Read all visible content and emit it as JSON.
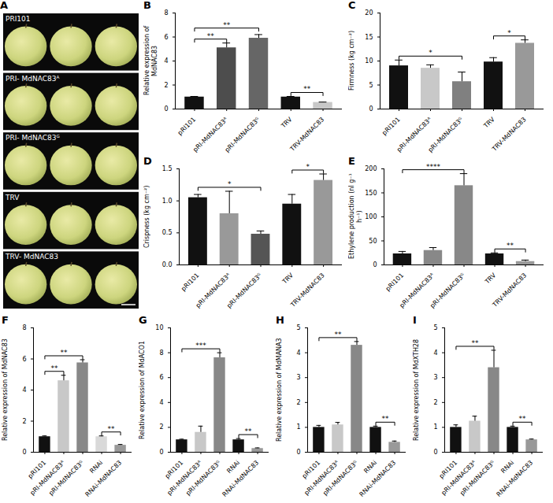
{
  "panel_a": {
    "letter": "A",
    "rows": [
      "PRI101",
      "PRI- MdNAC83ᴬ",
      "PRI- MdNAC83ᴳ",
      "TRV",
      "TRV- MdNAC83"
    ]
  },
  "chart_data": [
    {
      "letter": "B",
      "type": "bar",
      "y_label": "Relative expression of MdNAC83",
      "categories": [
        "pRI101",
        "pRI-MdNAC83ᴬ",
        "pRI-MdNAC83ᴳ",
        "TRV",
        "TRV-MdNAC83"
      ],
      "values": [
        1.0,
        5.1,
        5.9,
        1.0,
        0.55
      ],
      "errors": [
        0.05,
        0.4,
        0.3,
        0.05,
        0.03
      ],
      "colors": [
        "#111111",
        "#4d4d4d",
        "#666666",
        "#111111",
        "#c8c8c8"
      ],
      "ylim": [
        0,
        8
      ],
      "yticks": [
        0,
        2,
        4,
        6,
        8
      ],
      "annotations": [
        {
          "from": "pRI101",
          "to": "pRI-MdNAC83ᴬ",
          "label": "**"
        },
        {
          "from": "pRI101",
          "to": "pRI-MdNAC83ᴳ",
          "label": "**"
        },
        {
          "from": "TRV",
          "to": "TRV-MdNAC83",
          "label": "**"
        }
      ]
    },
    {
      "letter": "C",
      "type": "bar",
      "y_label": "Firmness (kg cm⁻²)",
      "categories": [
        "pRI101",
        "pRI-MdNAC83ᴬ",
        "pRI-MdNAC83ᴳ",
        "TRV",
        "TRV-MdNAC83"
      ],
      "values": [
        9.0,
        8.5,
        5.7,
        9.8,
        13.7
      ],
      "errors": [
        1.2,
        0.7,
        2.0,
        0.9,
        0.7
      ],
      "colors": [
        "#111111",
        "#c8c8c8",
        "#808080",
        "#111111",
        "#999999"
      ],
      "ylim": [
        0,
        20
      ],
      "yticks": [
        0,
        5,
        10,
        15,
        20
      ],
      "annotations": [
        {
          "from": "pRI101",
          "to": "pRI-MdNAC83ᴳ",
          "label": "*"
        },
        {
          "from": "TRV",
          "to": "TRV-MdNAC83",
          "label": "*"
        }
      ]
    },
    {
      "letter": "D",
      "type": "bar",
      "y_label": "Crispness (kg cm⁻²)",
      "categories": [
        "pRI101",
        "pRI-MdNAC83ᴬ",
        "pRI-MdNAC83ᴳ",
        "TRV",
        "TRV-MdNAC83"
      ],
      "values": [
        1.05,
        0.8,
        0.48,
        0.95,
        1.32
      ],
      "errors": [
        0.05,
        0.35,
        0.05,
        0.15,
        0.1
      ],
      "colors": [
        "#111111",
        "#999999",
        "#555555",
        "#111111",
        "#999999"
      ],
      "ylim": [
        0,
        1.5
      ],
      "yticks": [
        {
          "value": 0,
          "label": "0.0"
        },
        {
          "value": 0.5,
          "label": "0.5"
        },
        {
          "value": 1,
          "label": "1.0"
        },
        {
          "value": 1.5,
          "label": "1.5"
        }
      ],
      "annotations": [
        {
          "from": "pRI101",
          "to": "pRI-MdNAC83ᴳ",
          "label": "*"
        },
        {
          "from": "TRV",
          "to": "TRV-MdNAC83",
          "label": "*"
        }
      ]
    },
    {
      "letter": "E",
      "type": "bar",
      "y_label": "Ethylene production (nl g⁻¹ h⁻¹)",
      "categories": [
        "pRI101",
        "pRI-MdNAC83ᴬ",
        "pRI-MdNAC83ᴳ",
        "TRV",
        "TRV-MdNAC83"
      ],
      "values": [
        23,
        30,
        165,
        23,
        7
      ],
      "errors": [
        5,
        6,
        25,
        2,
        3
      ],
      "colors": [
        "#111111",
        "#888888",
        "#888888",
        "#111111",
        "#999999"
      ],
      "ylim": [
        0,
        200
      ],
      "yticks": [
        0,
        50,
        100,
        150,
        200
      ],
      "annotations": [
        {
          "from": "pRI101",
          "to": "pRI-MdNAC83ᴳ",
          "label": "****"
        },
        {
          "from": "TRV",
          "to": "TRV-MdNAC83",
          "label": "**"
        }
      ]
    },
    {
      "letter": "F",
      "type": "bar",
      "y_label": "Relative expression of MdNAC83",
      "categories": [
        "pRI101",
        "pRI-MdNAC83ᴬ",
        "pRI-MdNAC83ᴳ",
        "RNAi",
        "RNAi-MdNAC83"
      ],
      "values": [
        1.0,
        4.6,
        5.75,
        1.0,
        0.45
      ],
      "errors": [
        0.05,
        0.35,
        0.2,
        0.05,
        0.05
      ],
      "colors": [
        "#111111",
        "#c8c8c8",
        "#888888",
        "#d9d9d9",
        "#999999"
      ],
      "ylim": [
        0,
        8
      ],
      "yticks": [
        0,
        2,
        4,
        6,
        8
      ],
      "annotations": [
        {
          "from": "pRI101",
          "to": "pRI-MdNAC83ᴬ",
          "label": "**"
        },
        {
          "from": "pRI101",
          "to": "pRI-MdNAC83ᴳ",
          "label": "**"
        },
        {
          "from": "RNAi",
          "to": "RNAi-MdNAC83",
          "label": "**"
        }
      ]
    },
    {
      "letter": "G",
      "type": "bar",
      "y_label": "Relative expression of MdACO1",
      "categories": [
        "pRI101",
        "pRI-MdNAC83ᴬ",
        "pRI-MdNAC83ᴳ",
        "RNAi",
        "RNAi-MdNAC83"
      ],
      "values": [
        1.0,
        1.6,
        7.6,
        1.0,
        0.3
      ],
      "errors": [
        0.05,
        0.5,
        0.4,
        0.1,
        0.05
      ],
      "colors": [
        "#111111",
        "#c8c8c8",
        "#888888",
        "#111111",
        "#999999"
      ],
      "ylim": [
        0,
        10
      ],
      "yticks": [
        0,
        2,
        4,
        6,
        8,
        10
      ],
      "annotations": [
        {
          "from": "pRI101",
          "to": "pRI-MdNAC83ᴳ",
          "label": "***"
        },
        {
          "from": "RNAi",
          "to": "RNAi-MdNAC83",
          "label": "**"
        }
      ]
    },
    {
      "letter": "H",
      "type": "bar",
      "y_label": "Relative expression of MdMANA3",
      "categories": [
        "pRI101",
        "pRI-MdNAC83ᴬ",
        "pRI-MdNAC83ᴳ",
        "RNAi",
        "RNAi-MdNAC83"
      ],
      "values": [
        1.0,
        1.1,
        4.3,
        1.0,
        0.4
      ],
      "errors": [
        0.08,
        0.1,
        0.15,
        0.05,
        0.05
      ],
      "colors": [
        "#111111",
        "#c8c8c8",
        "#888888",
        "#111111",
        "#999999"
      ],
      "ylim": [
        0,
        5
      ],
      "yticks": [
        0,
        1,
        2,
        3,
        4,
        5
      ],
      "annotations": [
        {
          "from": "pRI101",
          "to": "pRI-MdNAC83ᴳ",
          "label": "**"
        },
        {
          "from": "RNAi",
          "to": "RNAi-MdNAC83",
          "label": "**"
        }
      ]
    },
    {
      "letter": "I",
      "type": "bar",
      "y_label": "Relative expression of MdXTH28",
      "categories": [
        "pRI101",
        "pRI-MdNAC83ᴬ",
        "pRI-MdNAC83ᴳ",
        "RNAi",
        "RNAi-MdNAC83"
      ],
      "values": [
        1.0,
        1.25,
        3.4,
        1.0,
        0.5
      ],
      "errors": [
        0.1,
        0.2,
        0.7,
        0.05,
        0.03
      ],
      "colors": [
        "#111111",
        "#c8c8c8",
        "#888888",
        "#111111",
        "#999999"
      ],
      "ylim": [
        0,
        5
      ],
      "yticks": [
        0,
        1,
        2,
        3,
        4,
        5
      ],
      "annotations": [
        {
          "from": "pRI101",
          "to": "pRI-MdNAC83ᴳ",
          "label": "**"
        },
        {
          "from": "RNAi",
          "to": "RNAi-MdNAC83",
          "label": "**"
        }
      ]
    }
  ]
}
